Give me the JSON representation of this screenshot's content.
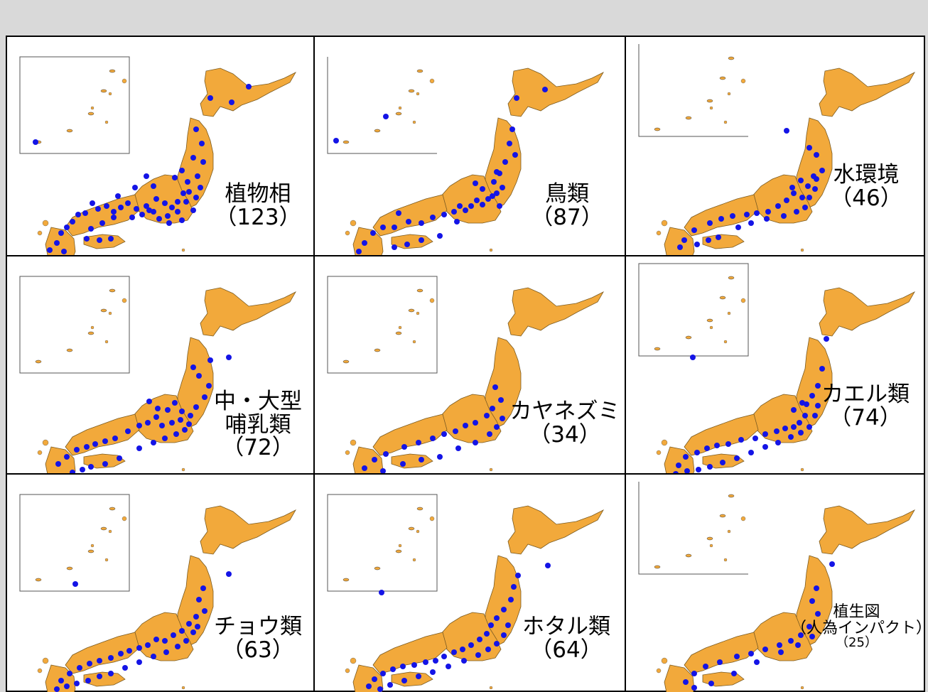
{
  "colors": {
    "land": "#f2a93b",
    "dots": "#1414e6",
    "border": "#000000",
    "background": "#d9d9d9"
  },
  "panels": [
    {
      "lines": [
        "植物相",
        "（123）"
      ],
      "size": "big"
    },
    {
      "lines": [
        "鳥類",
        "（87）"
      ],
      "size": "big"
    },
    {
      "lines": [
        "水環境",
        "（46）"
      ],
      "size": "big"
    },
    {
      "lines": [
        "中・大型",
        "哺乳類",
        "（72）"
      ],
      "size": "big"
    },
    {
      "lines": [
        "カヤネズミ",
        "（34）"
      ],
      "size": "big"
    },
    {
      "lines": [
        "カエル類",
        "（74）"
      ],
      "size": "big"
    },
    {
      "lines": [
        "チョウ類",
        "（63）"
      ],
      "size": "big"
    },
    {
      "lines": [
        "ホタル類",
        "（64）"
      ],
      "size": "big"
    },
    {
      "lines": [
        "植生図",
        "（人為インパクト）",
        "（25）"
      ],
      "size": "small"
    }
  ]
}
